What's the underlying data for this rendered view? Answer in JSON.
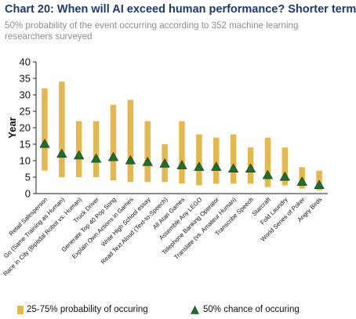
{
  "title": "Chart 20: When will AI exceed human performance? Shorter term",
  "subtitle": "50% probability of the event occurring according to 352 machine learning researchers surveyed",
  "colors": {
    "bar": "#e3b94f",
    "marker": "#236b2e",
    "marker_edge": "#0f3f18",
    "title": "#1f3a6b"
  },
  "chart_data": {
    "type": "floating-bar-with-markers",
    "ylabel": "Year",
    "ylim": [
      0,
      40
    ],
    "yticks": [
      0,
      5,
      10,
      15,
      20,
      25,
      30,
      35,
      40
    ],
    "grid": false,
    "legend_position": "bottom",
    "categories": [
      "Retail Salesperson",
      "Go (Same Training as Human)",
      "Race in City (Bipedal Robot vs. Human)",
      "Truck Driver",
      "Generate Top 40 Pop Song",
      "Explain Own Actions in Games",
      "Write High School essay",
      "Read Text Aloud (Text-to-Speech)",
      "All Atari Games",
      "Assemble Any LEGO",
      "Telephone Banking Operator",
      "Translate (vs. Amateur Human)",
      "Transcribe Speech",
      "Starcraft",
      "Fold Laundry",
      "World Series of Poker",
      "Angry Birds"
    ],
    "series": [
      {
        "name": "25-75% probability of occuring",
        "kind": "range",
        "low": [
          7,
          5,
          5,
          5,
          4,
          3.5,
          3.5,
          3.5,
          3,
          2.5,
          3,
          3,
          3,
          2,
          2.5,
          1.5,
          1
        ],
        "high": [
          32,
          34,
          22,
          22,
          27,
          28.5,
          22,
          15,
          22,
          18,
          17,
          18,
          14,
          17,
          14,
          8,
          7
        ]
      },
      {
        "name": "50% chance of occuring",
        "kind": "marker",
        "values": [
          15,
          12,
          11.5,
          10.5,
          11,
          10,
          9.5,
          9,
          8.5,
          8,
          8,
          7.5,
          7.5,
          5.5,
          5,
          3.5,
          2.5
        ]
      }
    ]
  }
}
